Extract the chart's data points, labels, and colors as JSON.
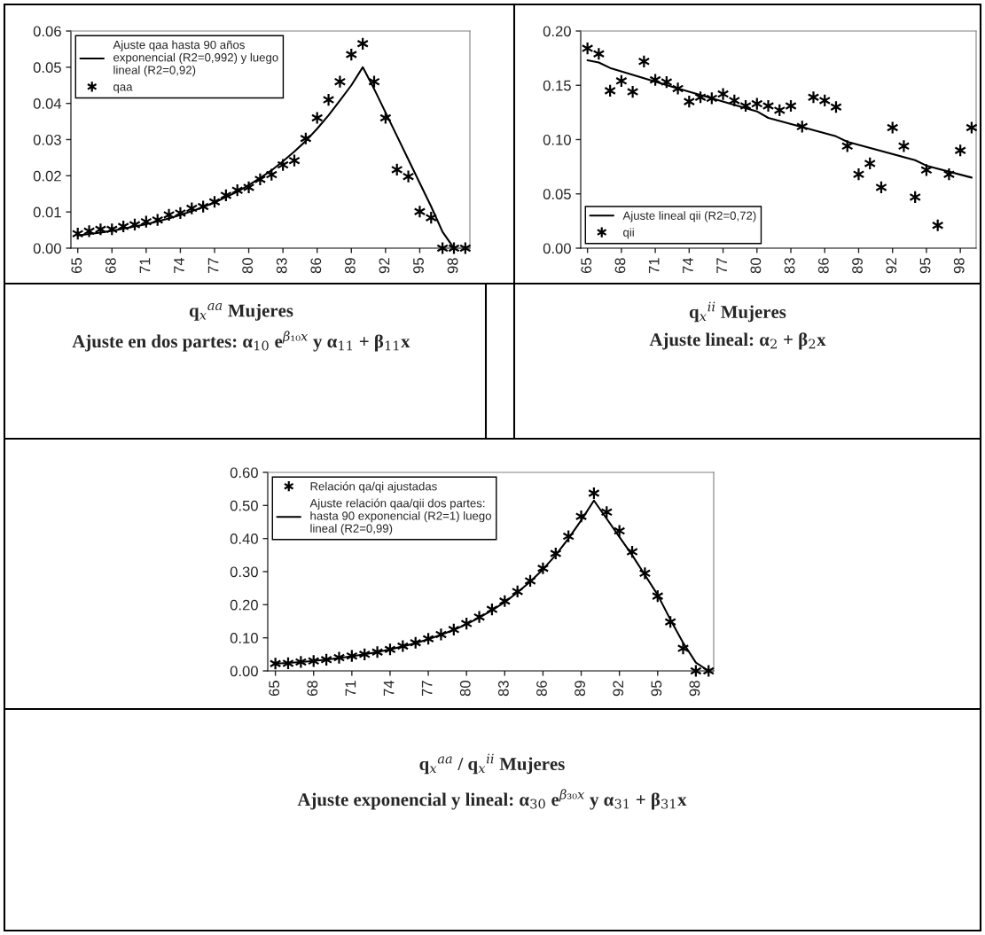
{
  "chart_data": [
    {
      "type": "line",
      "title": "q$_{x}$$^{aa}$ Mujeres",
      "annotations": [
        "Ajuste en dos partes: α$_{10}$ e$^{β₁₀x}$ y α$_{11}$ + β$_{11}$x"
      ],
      "x": [
        65,
        66,
        67,
        68,
        69,
        70,
        71,
        72,
        73,
        74,
        75,
        76,
        77,
        78,
        79,
        80,
        81,
        82,
        83,
        84,
        85,
        86,
        87,
        88,
        89,
        90,
        91,
        92,
        93,
        94,
        95,
        96,
        97,
        98,
        99
      ],
      "series": [
        {
          "name": "Ajuste qaa hasta 90 años\nexponencial (R2=0,992) y luego\nlineal (R2=0,92)",
          "color": "#000000",
          "line_style": "solid",
          "marker": "none",
          "x": [
            65,
            66,
            67,
            68,
            69,
            70,
            71,
            72,
            73,
            74,
            75,
            76,
            77,
            78,
            79,
            80,
            81,
            82,
            83,
            84,
            85,
            86,
            87,
            88,
            89,
            90,
            91,
            92,
            93,
            94,
            95,
            96,
            97,
            98
          ],
          "values": [
            0.0035,
            0.0039,
            0.0043,
            0.0048,
            0.0054,
            0.006,
            0.0066,
            0.0074,
            0.0082,
            0.0092,
            0.0102,
            0.0114,
            0.0126,
            0.0141,
            0.0156,
            0.0174,
            0.0194,
            0.0215,
            0.024,
            0.0267,
            0.0296,
            0.033,
            0.0367,
            0.0408,
            0.045,
            0.05,
            0.044,
            0.0375,
            0.031,
            0.0245,
            0.018,
            0.0115,
            0.0045,
            0.0
          ]
        },
        {
          "name": "qaa",
          "type": "scatter",
          "color": "#000000",
          "marker": "cross",
          "values": [
            0.004,
            0.0047,
            0.0052,
            0.0052,
            0.006,
            0.0065,
            0.0073,
            0.0078,
            0.0092,
            0.0097,
            0.011,
            0.0115,
            0.0128,
            0.0146,
            0.016,
            0.0168,
            0.019,
            0.0203,
            0.023,
            0.0242,
            0.0303,
            0.036,
            0.041,
            0.046,
            0.0535,
            0.0565,
            0.046,
            0.036,
            0.0217,
            0.0198,
            0.0101,
            0.0084,
            0.0,
            0.0,
            0.0
          ]
        }
      ],
      "xlim": [
        64.4,
        99.4
      ],
      "xticks": [
        65,
        68,
        71,
        74,
        77,
        80,
        83,
        86,
        89,
        92,
        95,
        98
      ],
      "ylim": [
        0,
        0.06
      ],
      "yticks": [
        {
          "value": 0,
          "label": "0.00"
        },
        {
          "value": 0.01,
          "label": "0.01"
        },
        {
          "value": 0.02,
          "label": "0.02"
        },
        {
          "value": 0.03,
          "label": "0.03"
        },
        {
          "value": 0.04,
          "label": "0.04"
        },
        {
          "value": 0.05,
          "label": "0.05"
        },
        {
          "value": 0.06,
          "label": "0.06"
        }
      ],
      "legend": "top left"
    },
    {
      "type": "line",
      "title": "q$_{x}$$^{ii}$ Mujeres",
      "annotations": [
        "Ajuste lineal: α$_{2}$ + β$_{2}$x"
      ],
      "x": [
        65,
        66,
        67,
        68,
        69,
        70,
        71,
        72,
        73,
        74,
        75,
        76,
        77,
        78,
        79,
        80,
        81,
        82,
        83,
        84,
        85,
        86,
        87,
        88,
        89,
        90,
        91,
        92,
        93,
        94,
        95,
        96,
        97,
        98,
        99
      ],
      "series": [
        {
          "name": "Ajuste lineal qii (R2=0,72)",
          "color": "#000000",
          "line_style": "solid",
          "marker": "none",
          "x": [
            65,
            66,
            67,
            74,
            80,
            81,
            87,
            88,
            94,
            95,
            99
          ],
          "values": [
            0.173,
            0.171,
            0.166,
            0.144,
            0.126,
            0.12,
            0.103,
            0.098,
            0.081,
            0.076,
            0.065
          ]
        },
        {
          "name": "qii",
          "type": "scatter",
          "color": "#000000",
          "marker": "cross",
          "values": [
            0.184,
            0.179,
            0.145,
            0.154,
            0.144,
            0.172,
            0.155,
            0.153,
            0.147,
            0.135,
            0.139,
            0.138,
            0.142,
            0.136,
            0.131,
            0.133,
            0.131,
            0.127,
            0.131,
            0.112,
            0.139,
            0.136,
            0.13,
            0.094,
            0.068,
            0.078,
            0.056,
            0.111,
            0.094,
            0.047,
            0.072,
            0.021,
            0.068,
            0.09,
            0.111
          ]
        }
      ],
      "xlim": [
        64.4,
        99.4
      ],
      "xticks": [
        65,
        68,
        71,
        74,
        77,
        80,
        83,
        86,
        89,
        92,
        95,
        98
      ],
      "ylim": [
        0,
        0.2
      ],
      "yticks": [
        {
          "value": 0,
          "label": "0.00"
        },
        {
          "value": 0.05,
          "label": "0.05"
        },
        {
          "value": 0.1,
          "label": "0.10"
        },
        {
          "value": 0.15,
          "label": "0.15"
        },
        {
          "value": 0.2,
          "label": "0.20"
        }
      ],
      "legend": "bottom left"
    },
    {
      "type": "line",
      "title": "q$_{x}$$^{aa}$ / q$_{x}$$^{ii}$ Mujeres",
      "annotations": [
        "Ajuste exponencial y lineal: α$_{30}$ e$^{β₃₀x}$ y α$_{31}$ + β$_{31}$x"
      ],
      "x": [
        65,
        66,
        67,
        68,
        69,
        70,
        71,
        72,
        73,
        74,
        75,
        76,
        77,
        78,
        79,
        80,
        81,
        82,
        83,
        84,
        85,
        86,
        87,
        88,
        89,
        90,
        91,
        92,
        93,
        94,
        95,
        96,
        97,
        98,
        99
      ],
      "series": [
        {
          "name": "Relación qa/qi ajustadas",
          "type": "scatter",
          "color": "#000000",
          "marker": "cross",
          "values": [
            0.022,
            0.023,
            0.027,
            0.03,
            0.034,
            0.04,
            0.045,
            0.05,
            0.057,
            0.065,
            0.075,
            0.085,
            0.097,
            0.11,
            0.125,
            0.143,
            0.163,
            0.186,
            0.211,
            0.24,
            0.272,
            0.31,
            0.355,
            0.407,
            0.467,
            0.537,
            0.48,
            0.423,
            0.36,
            0.295,
            0.226,
            0.148,
            0.068,
            0.0,
            0.0
          ]
        },
        {
          "name": "Ajuste relación qaa/qii dos partes:\nhasta 90 exponencial (R2=1) luego\nlineal (R2=0,99)",
          "color": "#000000",
          "line_style": "solid",
          "marker": "none",
          "x": [
            65,
            66,
            67,
            68,
            69,
            70,
            71,
            72,
            73,
            74,
            75,
            76,
            77,
            78,
            79,
            80,
            81,
            82,
            83,
            84,
            85,
            86,
            87,
            88,
            89,
            90,
            91,
            92,
            93,
            94,
            95,
            96,
            97,
            98,
            99
          ],
          "values": [
            0.022,
            0.024,
            0.027,
            0.03,
            0.034,
            0.039,
            0.044,
            0.05,
            0.057,
            0.065,
            0.074,
            0.084,
            0.096,
            0.109,
            0.124,
            0.141,
            0.161,
            0.183,
            0.208,
            0.237,
            0.27,
            0.307,
            0.35,
            0.4,
            0.455,
            0.515,
            0.46,
            0.405,
            0.35,
            0.29,
            0.23,
            0.155,
            0.085,
            0.025,
            0.0
          ]
        }
      ],
      "xlim": [
        64.4,
        99.4
      ],
      "xticks": [
        65,
        68,
        71,
        74,
        77,
        80,
        83,
        86,
        89,
        92,
        95,
        98
      ],
      "ylim": [
        0,
        0.6
      ],
      "yticks": [
        {
          "value": 0,
          "label": "0.00"
        },
        {
          "value": 0.1,
          "label": "0.10"
        },
        {
          "value": 0.2,
          "label": "0.20"
        },
        {
          "value": 0.3,
          "label": "0.30"
        },
        {
          "value": 0.4,
          "label": "0.40"
        },
        {
          "value": 0.5,
          "label": "0.50"
        },
        {
          "value": 0.6,
          "label": "0.60"
        }
      ],
      "legend": "top left"
    }
  ]
}
